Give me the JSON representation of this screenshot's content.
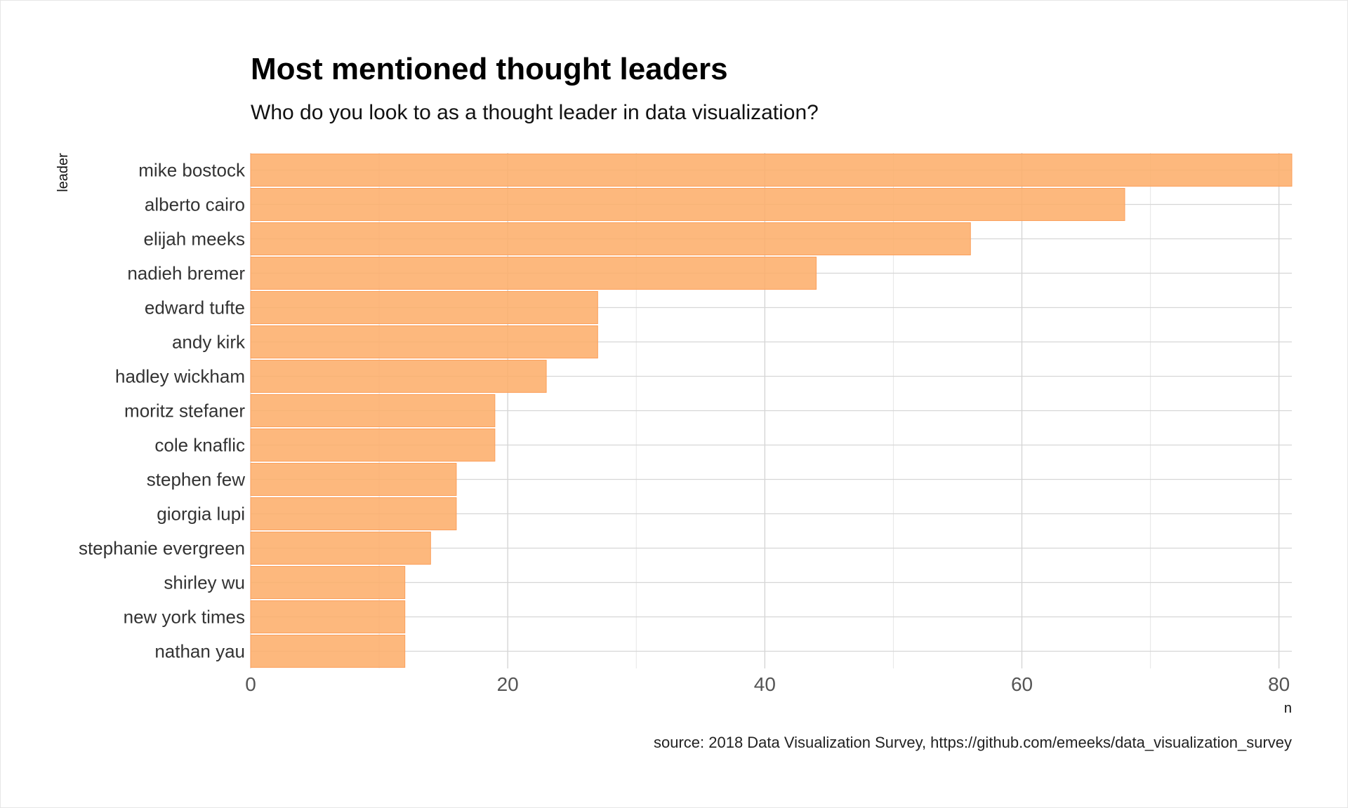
{
  "chart_data": {
    "type": "bar",
    "orientation": "horizontal",
    "title": "Most mentioned thought leaders",
    "subtitle": "Who do you look to as a thought leader in data visualization?",
    "xlabel": "n",
    "ylabel": "leader",
    "caption": "source: 2018 Data Visualization Survey, https://github.com/emeeks/data_visualization_survey",
    "categories": [
      "mike bostock",
      "alberto cairo",
      "elijah meeks",
      "nadieh bremer",
      "edward tufte",
      "andy kirk",
      "hadley wickham",
      "moritz stefaner",
      "cole knaflic",
      "stephen few",
      "giorgia lupi",
      "stephanie evergreen",
      "shirley wu",
      "new york times",
      "nathan yau"
    ],
    "values": [
      81,
      68,
      56,
      44,
      27,
      27,
      23,
      19,
      19,
      16,
      16,
      14,
      12,
      12,
      12
    ],
    "xlim": [
      0,
      81
    ],
    "xticks": [
      0,
      20,
      40,
      60,
      80
    ],
    "xtick_labels": [
      "0",
      "20",
      "40",
      "60",
      "80"
    ],
    "grid": true,
    "bar_color": "#fdae6b"
  }
}
